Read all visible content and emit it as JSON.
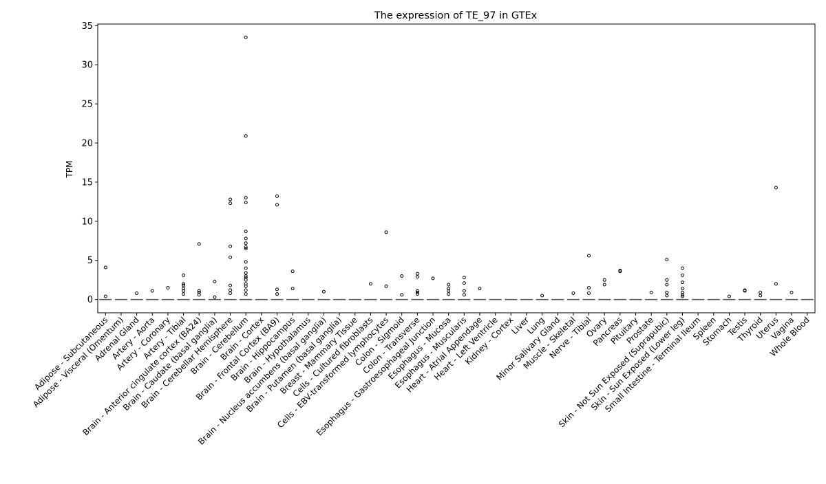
{
  "chart_data": {
    "type": "boxplot",
    "title": "The expression of TE_97 in GTEx",
    "xlabel": "",
    "ylabel": "TPM",
    "ylim": [
      -1.7,
      35.2
    ],
    "yticks": [
      0,
      5,
      10,
      15,
      20,
      25,
      30,
      35
    ],
    "grid": false,
    "legend": "none",
    "categories": [
      "Adipose - Subcutaneous",
      "Adipose - Visceral (Omentum)",
      "Adrenal Gland",
      "Artery - Aorta",
      "Artery - Coronary",
      "Artery - Tibial",
      "Brain - Anterior cingulate cortex (BA24)",
      "Brain - Caudate (basal ganglia)",
      "Brain - Cerebellar Hemisphere",
      "Brain - Cerebellum",
      "Brain - Cortex",
      "Brain - Frontal Cortex (BA9)",
      "Brain - Hippocampus",
      "Brain - Hypothalamus",
      "Brain - Nucleus accumbens (basal ganglia)",
      "Brain - Putamen (basal ganglia)",
      "Breast - Mammary Tissue",
      "Cells - Cultured fibroblasts",
      "Cells - EBV-transformed lymphocytes",
      "Colon - Sigmoid",
      "Colon - Transverse",
      "Esophagus - Gastroesophageal Junction",
      "Esophagus - Mucosa",
      "Esophagus - Muscularis",
      "Heart - Atrial Appendage",
      "Heart - Left Ventricle",
      "Kidney - Cortex",
      "Liver",
      "Lung",
      "Minor Salivary Gland",
      "Muscle - Skeletal",
      "Nerve - Tibial",
      "Ovary",
      "Pancreas",
      "Pituitary",
      "Prostate",
      "Skin - Not Sun Exposed (Suprapubic)",
      "Skin - Sun Exposed (Lower leg)",
      "Small Intestine - Terminal Ileum",
      "Spleen",
      "Stomach",
      "Testis",
      "Thyroid",
      "Uterus",
      "Vagina",
      "Whole Blood"
    ],
    "medians": [
      0,
      0,
      0,
      0,
      0,
      0,
      0,
      0,
      0,
      0,
      0,
      0,
      0,
      0,
      0,
      0,
      0,
      0,
      0,
      0,
      0,
      0,
      0,
      0,
      0,
      0,
      0,
      0,
      0,
      0,
      0,
      0,
      0,
      0,
      0,
      0,
      0,
      0,
      0,
      0,
      0,
      0,
      0,
      0,
      0,
      0
    ],
    "outliers": [
      [
        4.1,
        0.4
      ],
      [],
      [
        0.8
      ],
      [
        1.1
      ],
      [
        1.5
      ],
      [
        3.1,
        2.0,
        1.8,
        1.4,
        1.1,
        0.7
      ],
      [
        7.1,
        1.1,
        0.9,
        0.6
      ],
      [
        2.3,
        0.3
      ],
      [
        12.8,
        12.3,
        6.8,
        5.4,
        1.8,
        1.2,
        0.8
      ],
      [
        33.5,
        20.9,
        13.0,
        12.4,
        8.7,
        7.8,
        7.2,
        6.7,
        6.5,
        4.8,
        4.0,
        3.4,
        3.0,
        2.8,
        2.5,
        2.0,
        1.7,
        1.2,
        0.7
      ],
      [],
      [
        13.2,
        12.1,
        1.3,
        0.7
      ],
      [
        3.6,
        1.4
      ],
      [],
      [
        1.0
      ],
      [],
      [],
      [
        2.0
      ],
      [
        8.6,
        1.7
      ],
      [
        3.0,
        0.6
      ],
      [
        3.3,
        2.9,
        1.1,
        0.9,
        0.7
      ],
      [
        2.7
      ],
      [
        1.9,
        1.4,
        1.1,
        0.7
      ],
      [
        2.8,
        2.1,
        1.1,
        0.6
      ],
      [
        1.4
      ],
      [],
      [],
      [],
      [
        0.5
      ],
      [],
      [
        0.8
      ],
      [
        5.6,
        1.5,
        0.8
      ],
      [
        2.5,
        1.9
      ],
      [
        3.7,
        3.6
      ],
      [],
      [
        0.9
      ],
      [
        5.1,
        2.5,
        1.9,
        0.9,
        0.5
      ],
      [
        4.0,
        3.1,
        2.2,
        1.4,
        0.9,
        0.6,
        0.4
      ],
      [],
      [],
      [
        0.4
      ],
      [
        1.2,
        1.1
      ],
      [
        0.9,
        0.5
      ],
      [
        14.3,
        2.0
      ],
      [
        0.9
      ],
      []
    ]
  }
}
